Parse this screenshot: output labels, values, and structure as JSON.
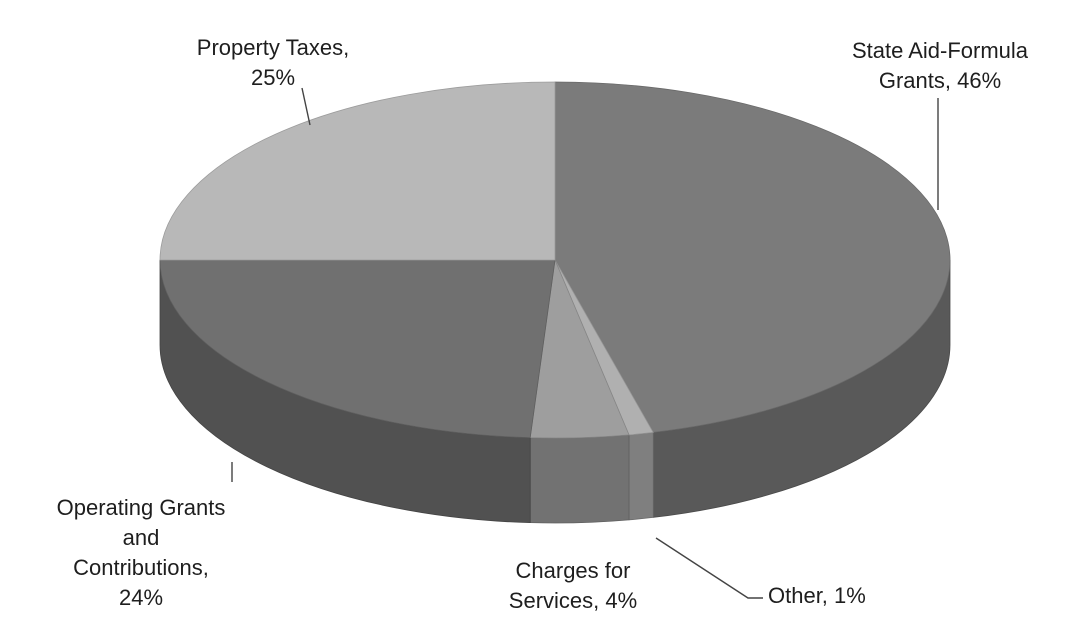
{
  "chart_data": {
    "type": "pie",
    "style": "3d",
    "title": "",
    "slices": [
      {
        "name": "State Aid-Formula Grants",
        "value": 46,
        "label": [
          "State Aid-Formula",
          "Grants, 46%"
        ],
        "color": "#7b7b7b"
      },
      {
        "name": "Other",
        "value": 1,
        "label": [
          "Other, 1%"
        ],
        "color": "#b0b0b0"
      },
      {
        "name": "Charges for Services",
        "value": 4,
        "label": [
          "Charges for",
          "Services, 4%"
        ],
        "color": "#9e9e9e"
      },
      {
        "name": "Operating Grants and Contributions",
        "value": 24,
        "label": [
          "Operating Grants",
          "and",
          "Contributions,",
          "24%"
        ],
        "color": "#707070"
      },
      {
        "name": "Property Taxes",
        "value": 25,
        "label": [
          "Property Taxes,",
          "25%"
        ],
        "color": "#b8b8b8"
      }
    ]
  }
}
